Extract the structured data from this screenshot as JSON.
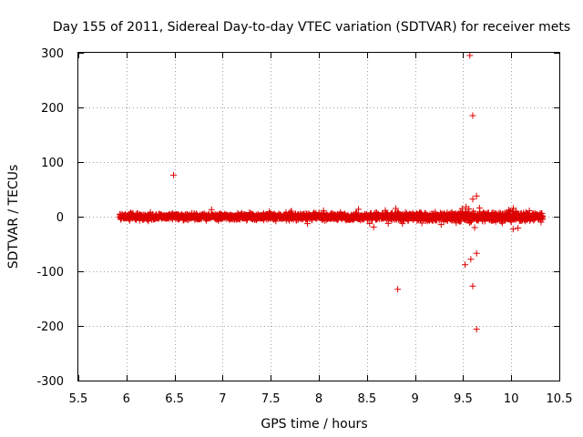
{
  "chart_data": {
    "type": "scatter",
    "title": "Day 155 of 2011, Sidereal Day-to-day VTEC variation (SDTVAR) for receiver mets",
    "xlabel": "GPS time / hours",
    "ylabel": "SDTVAR / TECUs",
    "xlim": [
      5.5,
      10.5
    ],
    "ylim": [
      -300,
      300
    ],
    "xticks": [
      5.5,
      6,
      6.5,
      7,
      7.5,
      8,
      8.5,
      9,
      9.5,
      10,
      10.5
    ],
    "xtick_labels": [
      "5.5",
      "6",
      "6.5",
      "7",
      "7.5",
      "8",
      "8.5",
      "9",
      "9.5",
      "10",
      "10.5"
    ],
    "yticks": [
      -300,
      -200,
      -100,
      0,
      100,
      200,
      300
    ],
    "ytick_labels": [
      "-300",
      "-200",
      "-100",
      "0",
      "100",
      "200",
      "300"
    ],
    "grid": true,
    "marker": "+",
    "color": "#dd0000",
    "dense_band": {
      "x_range": [
        5.93,
        10.33
      ],
      "typical_spread": 5,
      "note": "continuous band of several thousand points clustered around 0"
    },
    "outliers": [
      {
        "x": 6.49,
        "y": 76
      },
      {
        "x": 8.8,
        "y": 15
      },
      {
        "x": 8.82,
        "y": -133
      },
      {
        "x": 9.47,
        "y": 10
      },
      {
        "x": 9.52,
        "y": -88
      },
      {
        "x": 9.53,
        "y": 18
      },
      {
        "x": 9.57,
        "y": 295
      },
      {
        "x": 9.58,
        "y": -78
      },
      {
        "x": 9.6,
        "y": 185
      },
      {
        "x": 9.6,
        "y": 32
      },
      {
        "x": 9.6,
        "y": -127
      },
      {
        "x": 9.62,
        "y": -20
      },
      {
        "x": 9.64,
        "y": -206
      },
      {
        "x": 9.64,
        "y": -67
      },
      {
        "x": 9.64,
        "y": 38
      },
      {
        "x": 9.67,
        "y": 16
      },
      {
        "x": 10.02,
        "y": -23
      }
    ]
  }
}
